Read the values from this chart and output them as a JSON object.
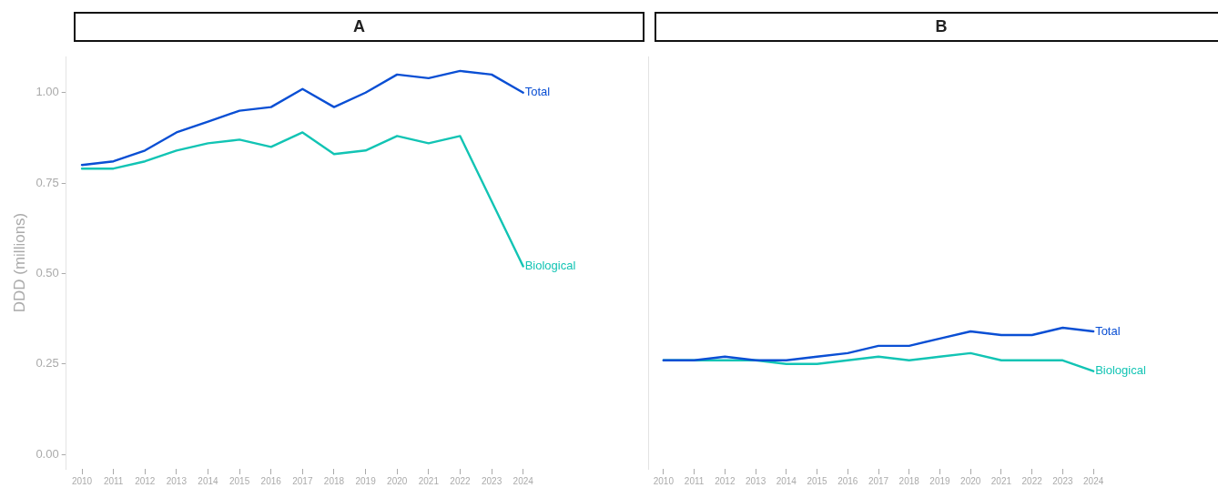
{
  "chart_data": [
    {
      "type": "line",
      "title": "A",
      "ylabel": "DDD (millions)",
      "categories": [
        "2010",
        "2011",
        "2012",
        "2013",
        "2014",
        "2015",
        "2016",
        "2017",
        "2018",
        "2019",
        "2020",
        "2021",
        "2022",
        "2023",
        "2024"
      ],
      "series": [
        {
          "name": "Total",
          "color": "#0a4fd4",
          "values": [
            0.8,
            0.81,
            0.84,
            0.89,
            0.92,
            0.95,
            0.96,
            1.01,
            0.96,
            1.0,
            1.05,
            1.04,
            1.06,
            1.05,
            1.0
          ]
        },
        {
          "name": "Biological",
          "color": "#12c4b4",
          "values": [
            0.79,
            0.79,
            0.81,
            0.84,
            0.86,
            0.87,
            0.85,
            0.89,
            0.83,
            0.84,
            0.88,
            0.86,
            0.88,
            0.7,
            0.52
          ]
        }
      ],
      "ylim": [
        -0.04,
        1.1
      ],
      "yticks": [
        {
          "value": 0,
          "label": "0.00"
        },
        {
          "value": 0.25,
          "label": "0.25"
        },
        {
          "value": 0.5,
          "label": "0.50"
        },
        {
          "value": 0.75,
          "label": "0.75"
        },
        {
          "value": 1,
          "label": "1.00"
        }
      ],
      "grid": false,
      "legend": false,
      "marker": "none",
      "line_style": "solid"
    },
    {
      "type": "line",
      "title": "B",
      "categories": [
        "2010",
        "2011",
        "2012",
        "2013",
        "2014",
        "2015",
        "2016",
        "2017",
        "2018",
        "2019",
        "2020",
        "2021",
        "2022",
        "2023",
        "2024"
      ],
      "series": [
        {
          "name": "Total",
          "color": "#0a4fd4",
          "values": [
            0.26,
            0.26,
            0.27,
            0.26,
            0.26,
            0.27,
            0.28,
            0.3,
            0.3,
            0.32,
            0.34,
            0.33,
            0.33,
            0.35,
            0.34
          ]
        },
        {
          "name": "Biological",
          "color": "#12c4b4",
          "values": [
            0.26,
            0.26,
            0.26,
            0.26,
            0.25,
            0.25,
            0.26,
            0.27,
            0.26,
            0.27,
            0.28,
            0.26,
            0.26,
            0.26,
            0.23
          ]
        }
      ],
      "ylim": [
        -0.04,
        1.1
      ],
      "grid": false,
      "legend": false,
      "marker": "none",
      "line_style": "solid",
      "tick_labels": "x"
    }
  ]
}
